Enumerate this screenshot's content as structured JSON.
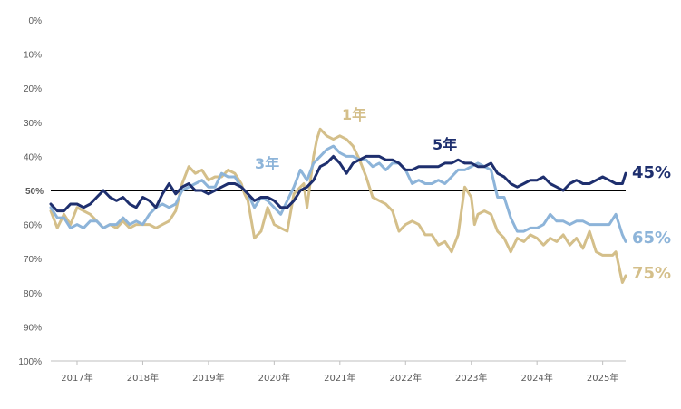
{
  "chart_data": {
    "type": "line",
    "ylim": [
      0,
      100
    ],
    "y_inverted": true,
    "yticks": [
      "0%",
      "10%",
      "20%",
      "30%",
      "40%",
      "50%",
      "60%",
      "70%",
      "80%",
      "90%",
      "100%"
    ],
    "xlim": [
      2016.6,
      2025.35
    ],
    "xticks": [
      {
        "x": 2017,
        "label": "2017年"
      },
      {
        "x": 2018,
        "label": "2018年"
      },
      {
        "x": 2019,
        "label": "2019年"
      },
      {
        "x": 2020,
        "label": "2020年"
      },
      {
        "x": 2021,
        "label": "2021年"
      },
      {
        "x": 2022,
        "label": "2022年"
      },
      {
        "x": 2023,
        "label": "2023年"
      },
      {
        "x": 2024,
        "label": "2024年"
      },
      {
        "x": 2025,
        "label": "2025年"
      }
    ],
    "reference_line": {
      "y": 50,
      "label": "50%"
    },
    "series": [
      {
        "name": "1年",
        "color": "#d4bf8a",
        "end_label": "75%",
        "x": [
          2016.6,
          2016.7,
          2016.8,
          2016.9,
          2017.0,
          2017.1,
          2017.2,
          2017.3,
          2017.4,
          2017.5,
          2017.6,
          2017.7,
          2017.8,
          2017.9,
          2018.0,
          2018.1,
          2018.2,
          2018.3,
          2018.4,
          2018.5,
          2018.6,
          2018.7,
          2018.8,
          2018.9,
          2019.0,
          2019.1,
          2019.2,
          2019.3,
          2019.4,
          2019.5,
          2019.55,
          2019.6,
          2019.7,
          2019.8,
          2019.9,
          2020.0,
          2020.1,
          2020.2,
          2020.3,
          2020.4,
          2020.45,
          2020.5,
          2020.6,
          2020.65,
          2020.7,
          2020.8,
          2020.9,
          2021.0,
          2021.1,
          2021.2,
          2021.3,
          2021.4,
          2021.5,
          2021.6,
          2021.7,
          2021.8,
          2021.9,
          2022.0,
          2022.1,
          2022.2,
          2022.3,
          2022.4,
          2022.5,
          2022.6,
          2022.7,
          2022.8,
          2022.9,
          2023.0,
          2023.05,
          2023.1,
          2023.2,
          2023.3,
          2023.4,
          2023.5,
          2023.6,
          2023.7,
          2023.8,
          2023.9,
          2024.0,
          2024.1,
          2024.2,
          2024.3,
          2024.4,
          2024.5,
          2024.6,
          2024.7,
          2024.8,
          2024.9,
          2025.0,
          2025.1,
          2025.15,
          2025.2,
          2025.3,
          2025.35
        ],
        "y": [
          56,
          61,
          57,
          60,
          55,
          56,
          57,
          59,
          61,
          60,
          61,
          59,
          61,
          60,
          60,
          60,
          61,
          60,
          59,
          56,
          48,
          43,
          45,
          44,
          47,
          46,
          46,
          44,
          45,
          48,
          51,
          53,
          64,
          62,
          55,
          60,
          61,
          62,
          51,
          49,
          48,
          55,
          40,
          35,
          32,
          34,
          35,
          34,
          35,
          37,
          41,
          46,
          52,
          53,
          54,
          56,
          62,
          60,
          59,
          60,
          63,
          63,
          66,
          65,
          68,
          63,
          49,
          52,
          60,
          57,
          56,
          57,
          62,
          64,
          68,
          64,
          65,
          63,
          64,
          66,
          64,
          65,
          63,
          66,
          64,
          67,
          62,
          68,
          69,
          69,
          69,
          68,
          77,
          75
        ]
      },
      {
        "name": "3年",
        "color": "#8db4d9",
        "end_label": "65%",
        "x": [
          2016.6,
          2016.7,
          2016.8,
          2016.9,
          2017.0,
          2017.1,
          2017.2,
          2017.3,
          2017.4,
          2017.5,
          2017.6,
          2017.7,
          2017.8,
          2017.9,
          2018.0,
          2018.1,
          2018.2,
          2018.3,
          2018.4,
          2018.5,
          2018.6,
          2018.7,
          2018.8,
          2018.9,
          2019.0,
          2019.1,
          2019.2,
          2019.3,
          2019.4,
          2019.5,
          2019.6,
          2019.7,
          2019.8,
          2019.9,
          2020.0,
          2020.1,
          2020.2,
          2020.3,
          2020.4,
          2020.5,
          2020.6,
          2020.7,
          2020.8,
          2020.9,
          2021.0,
          2021.1,
          2021.2,
          2021.3,
          2021.4,
          2021.5,
          2021.6,
          2021.7,
          2021.8,
          2021.9,
          2022.0,
          2022.1,
          2022.2,
          2022.3,
          2022.4,
          2022.5,
          2022.6,
          2022.7,
          2022.8,
          2022.9,
          2023.0,
          2023.1,
          2023.2,
          2023.3,
          2023.4,
          2023.5,
          2023.6,
          2023.7,
          2023.8,
          2023.9,
          2024.0,
          2024.1,
          2024.2,
          2024.3,
          2024.4,
          2024.5,
          2024.6,
          2024.7,
          2024.8,
          2024.9,
          2025.0,
          2025.1,
          2025.2,
          2025.3,
          2025.35
        ],
        "y": [
          55,
          58,
          58,
          61,
          60,
          61,
          59,
          59,
          61,
          60,
          60,
          58,
          60,
          59,
          60,
          57,
          55,
          54,
          55,
          54,
          50,
          49,
          48,
          47,
          49,
          49,
          45,
          46,
          46,
          49,
          51,
          55,
          52,
          53,
          55,
          57,
          53,
          49,
          44,
          47,
          42,
          40,
          38,
          37,
          39,
          40,
          40,
          41,
          41,
          43,
          42,
          44,
          42,
          42,
          44,
          48,
          47,
          48,
          48,
          47,
          48,
          46,
          44,
          44,
          43,
          42,
          43,
          44,
          52,
          52,
          58,
          62,
          62,
          61,
          61,
          60,
          57,
          59,
          59,
          60,
          59,
          59,
          60,
          60,
          60,
          60,
          57,
          63,
          65
        ]
      },
      {
        "name": "5年",
        "color": "#1e2f6e",
        "end_label": "45%",
        "x": [
          2016.6,
          2016.7,
          2016.8,
          2016.9,
          2017.0,
          2017.1,
          2017.2,
          2017.3,
          2017.4,
          2017.5,
          2017.6,
          2017.7,
          2017.8,
          2017.9,
          2018.0,
          2018.1,
          2018.2,
          2018.3,
          2018.4,
          2018.5,
          2018.6,
          2018.7,
          2018.8,
          2018.9,
          2019.0,
          2019.1,
          2019.2,
          2019.3,
          2019.4,
          2019.5,
          2019.6,
          2019.7,
          2019.8,
          2019.9,
          2020.0,
          2020.1,
          2020.2,
          2020.3,
          2020.4,
          2020.5,
          2020.6,
          2020.7,
          2020.8,
          2020.9,
          2021.0,
          2021.1,
          2021.2,
          2021.3,
          2021.4,
          2021.5,
          2021.6,
          2021.7,
          2021.8,
          2021.9,
          2022.0,
          2022.1,
          2022.2,
          2022.3,
          2022.4,
          2022.5,
          2022.6,
          2022.7,
          2022.8,
          2022.9,
          2023.0,
          2023.1,
          2023.2,
          2023.3,
          2023.4,
          2023.5,
          2023.6,
          2023.7,
          2023.8,
          2023.9,
          2024.0,
          2024.1,
          2024.2,
          2024.3,
          2024.4,
          2024.5,
          2024.6,
          2024.7,
          2024.8,
          2024.9,
          2025.0,
          2025.1,
          2025.2,
          2025.3,
          2025.35
        ],
        "y": [
          54,
          56,
          56,
          54,
          54,
          55,
          54,
          52,
          50,
          52,
          53,
          52,
          54,
          55,
          52,
          53,
          55,
          51,
          48,
          51,
          49,
          48,
          50,
          50,
          51,
          50,
          49,
          48,
          48,
          49,
          51,
          53,
          52,
          52,
          53,
          55,
          55,
          53,
          50,
          49,
          47,
          43,
          42,
          40,
          42,
          45,
          42,
          41,
          40,
          40,
          40,
          41,
          41,
          42,
          44,
          44,
          43,
          43,
          43,
          43,
          42,
          42,
          41,
          42,
          42,
          43,
          43,
          42,
          45,
          46,
          48,
          49,
          48,
          47,
          47,
          46,
          48,
          49,
          50,
          48,
          47,
          48,
          48,
          47,
          46,
          47,
          48,
          48,
          45
        ]
      }
    ]
  }
}
